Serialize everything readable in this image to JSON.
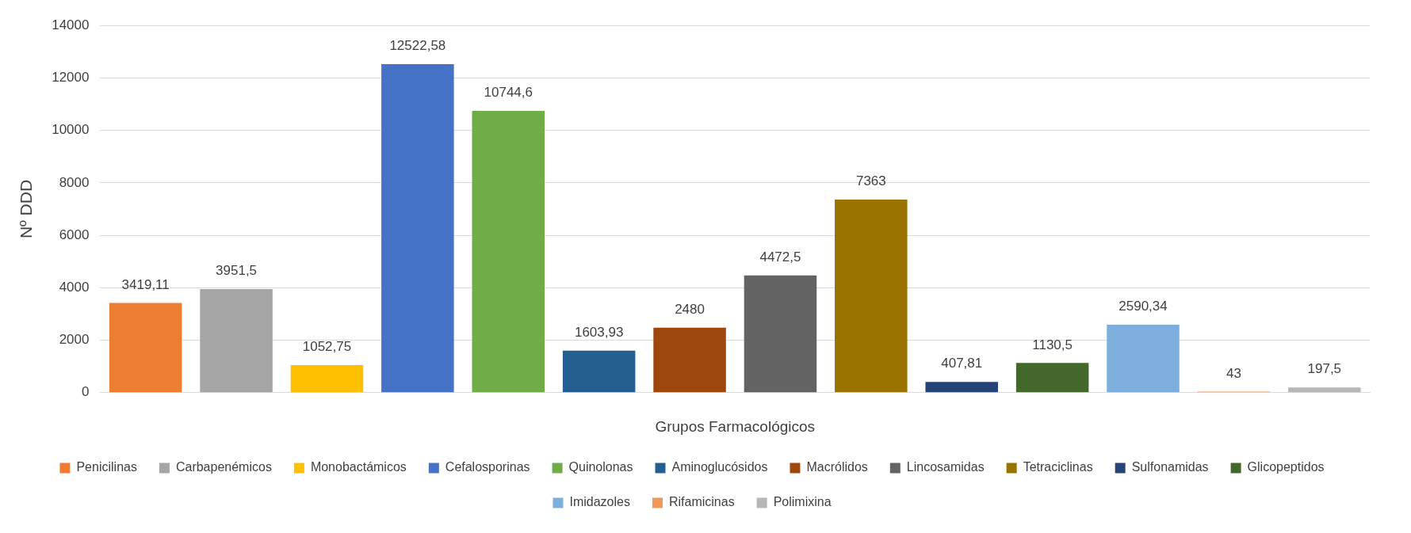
{
  "chart_data": {
    "type": "bar",
    "xlabel": "Grupos Farmacológicos",
    "ylabel": "Nº DDD",
    "categories": [
      null,
      null,
      null,
      null,
      null,
      null,
      null,
      null,
      null,
      null,
      null,
      null,
      null,
      null
    ],
    "ylim": [
      0,
      14000
    ],
    "yticks": [
      0,
      2000,
      4000,
      6000,
      8000,
      10000,
      12000,
      14000
    ],
    "grid": "y",
    "legend": "bottom",
    "series": [
      {
        "name": "Penicilinas",
        "color": "#ed7d31",
        "values": [
          3419.11,
          null,
          null,
          null,
          null,
          null,
          null,
          null,
          null,
          null,
          null,
          null,
          null,
          null
        ],
        "value_labels": [
          "3419,11",
          null,
          null,
          null,
          null,
          null,
          null,
          null,
          null,
          null,
          null,
          null,
          null,
          null
        ]
      },
      {
        "name": "Carbapenémicos",
        "color": "#a5a5a5",
        "values": [
          null,
          3951.5,
          null,
          null,
          null,
          null,
          null,
          null,
          null,
          null,
          null,
          null,
          null,
          null
        ],
        "value_labels": [
          null,
          "3951,5",
          null,
          null,
          null,
          null,
          null,
          null,
          null,
          null,
          null,
          null,
          null,
          null
        ]
      },
      {
        "name": "Monobactámicos",
        "color": "#ffc000",
        "values": [
          null,
          null,
          1052.75,
          null,
          null,
          null,
          null,
          null,
          null,
          null,
          null,
          null,
          null,
          null
        ],
        "value_labels": [
          null,
          null,
          "1052,75",
          null,
          null,
          null,
          null,
          null,
          null,
          null,
          null,
          null,
          null,
          null
        ]
      },
      {
        "name": "Cefalosporinas",
        "color": "#4472c4",
        "values": [
          null,
          null,
          null,
          12522.58,
          null,
          null,
          null,
          null,
          null,
          null,
          null,
          null,
          null,
          null
        ],
        "value_labels": [
          null,
          null,
          null,
          "12522,58",
          null,
          null,
          null,
          null,
          null,
          null,
          null,
          null,
          null,
          null
        ]
      },
      {
        "name": "Quinolonas",
        "color": "#70ad47",
        "values": [
          null,
          null,
          null,
          null,
          10744.6,
          null,
          null,
          null,
          null,
          null,
          null,
          null,
          null,
          null
        ],
        "value_labels": [
          null,
          null,
          null,
          null,
          "10744,6",
          null,
          null,
          null,
          null,
          null,
          null,
          null,
          null,
          null
        ]
      },
      {
        "name": "Aminoglucósidos",
        "color": "#255e91",
        "values": [
          null,
          null,
          null,
          null,
          null,
          1603.93,
          null,
          null,
          null,
          null,
          null,
          null,
          null,
          null
        ],
        "value_labels": [
          null,
          null,
          null,
          null,
          null,
          "1603,93",
          null,
          null,
          null,
          null,
          null,
          null,
          null,
          null
        ]
      },
      {
        "name": "Macrólidos",
        "color": "#9e480e",
        "values": [
          null,
          null,
          null,
          null,
          null,
          null,
          2480,
          null,
          null,
          null,
          null,
          null,
          null,
          null
        ],
        "value_labels": [
          null,
          null,
          null,
          null,
          null,
          null,
          "2480",
          null,
          null,
          null,
          null,
          null,
          null,
          null
        ]
      },
      {
        "name": "Lincosamidas",
        "color": "#636363",
        "values": [
          null,
          null,
          null,
          null,
          null,
          null,
          null,
          4472.5,
          null,
          null,
          null,
          null,
          null,
          null
        ],
        "value_labels": [
          null,
          null,
          null,
          null,
          null,
          null,
          null,
          "4472,5",
          null,
          null,
          null,
          null,
          null,
          null
        ]
      },
      {
        "name": "Tetraciclinas",
        "color": "#997300",
        "values": [
          null,
          null,
          null,
          null,
          null,
          null,
          null,
          null,
          7363,
          null,
          null,
          null,
          null,
          null
        ],
        "value_labels": [
          null,
          null,
          null,
          null,
          null,
          null,
          null,
          null,
          "7363",
          null,
          null,
          null,
          null,
          null
        ]
      },
      {
        "name": "Sulfonamidas",
        "color": "#264478",
        "values": [
          null,
          null,
          null,
          null,
          null,
          null,
          null,
          null,
          null,
          407.81,
          null,
          null,
          null,
          null
        ],
        "value_labels": [
          null,
          null,
          null,
          null,
          null,
          null,
          null,
          null,
          null,
          "407,81",
          null,
          null,
          null,
          null
        ]
      },
      {
        "name": "Glicopeptidos",
        "color": "#43682b",
        "values": [
          null,
          null,
          null,
          null,
          null,
          null,
          null,
          null,
          null,
          null,
          1130.5,
          null,
          null,
          null
        ],
        "value_labels": [
          null,
          null,
          null,
          null,
          null,
          null,
          null,
          null,
          null,
          null,
          "1130,5",
          null,
          null,
          null
        ]
      },
      {
        "name": "Imidazoles",
        "color": "#7cafdd",
        "values": [
          null,
          null,
          null,
          null,
          null,
          null,
          null,
          null,
          null,
          null,
          null,
          2590.34,
          null,
          null
        ],
        "value_labels": [
          null,
          null,
          null,
          null,
          null,
          null,
          null,
          null,
          null,
          null,
          null,
          "2590,34",
          null,
          null
        ]
      },
      {
        "name": "Rifamicinas",
        "color": "#f1975a",
        "values": [
          null,
          null,
          null,
          null,
          null,
          null,
          null,
          null,
          null,
          null,
          null,
          null,
          43,
          null
        ],
        "value_labels": [
          null,
          null,
          null,
          null,
          null,
          null,
          null,
          null,
          null,
          null,
          null,
          null,
          "43",
          null
        ]
      },
      {
        "name": "Polimixina",
        "color": "#b7b7b7",
        "values": [
          null,
          null,
          null,
          null,
          null,
          null,
          null,
          null,
          null,
          null,
          null,
          null,
          null,
          197.5
        ],
        "value_labels": [
          null,
          null,
          null,
          null,
          null,
          null,
          null,
          null,
          null,
          null,
          null,
          null,
          null,
          "197,5"
        ]
      }
    ]
  }
}
